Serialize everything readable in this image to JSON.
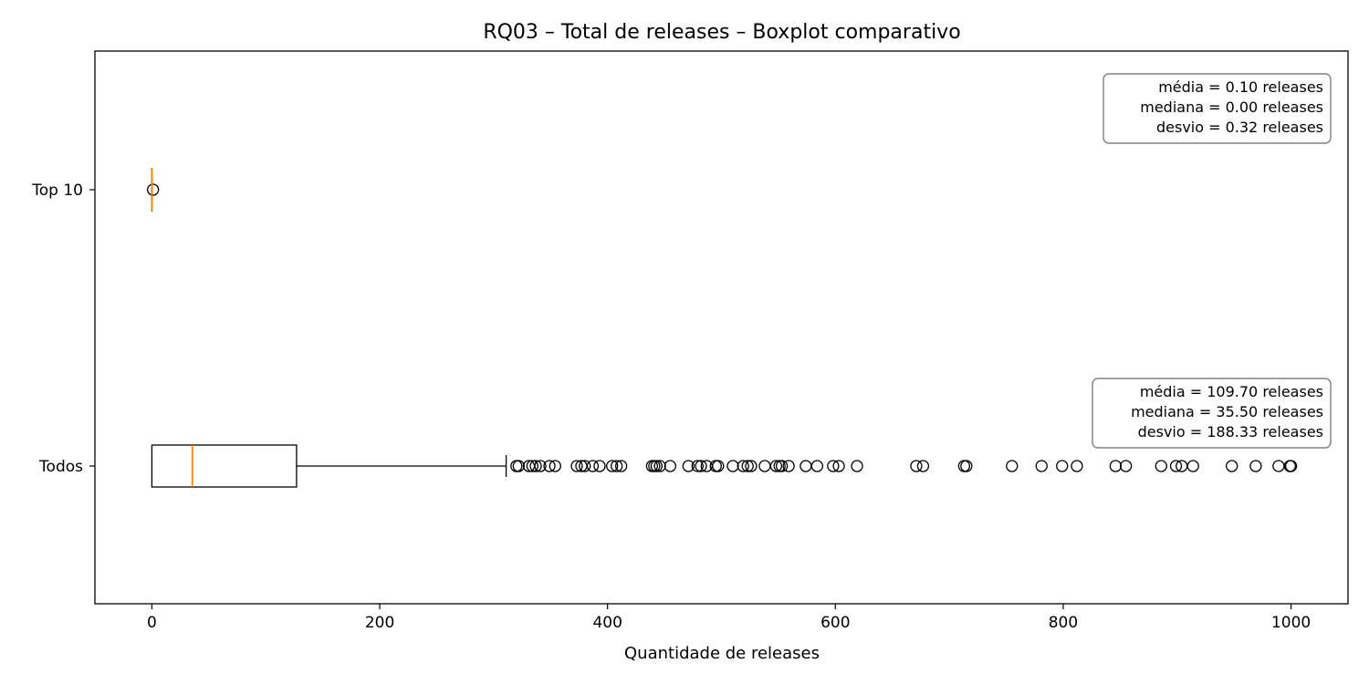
{
  "chart_data": {
    "type": "boxplot",
    "orientation": "horizontal",
    "title": "RQ03 – Total de releases – Boxplot comparativo",
    "xlabel": "Quantidade de releases",
    "ylabel": "",
    "xlim": [
      -50,
      1050
    ],
    "xticks": [
      0,
      200,
      400,
      600,
      800,
      1000
    ],
    "xtick_labels": [
      "0",
      "200",
      "400",
      "600",
      "800",
      "1000"
    ],
    "grid": false,
    "series": [
      {
        "name": "Todos",
        "q1": 0,
        "median": 35.5,
        "q3": 127,
        "whisker_low": 0,
        "whisker_high": 311,
        "outliers": [
          320,
          322,
          331,
          334,
          337,
          341,
          349,
          354,
          373,
          377,
          380,
          387,
          393,
          404,
          408,
          412,
          439,
          441,
          443,
          446,
          455,
          471,
          479,
          482,
          487,
          495,
          497,
          510,
          519,
          523,
          526,
          538,
          548,
          551,
          553,
          559,
          574,
          584,
          598,
          603,
          619,
          671,
          677,
          713,
          715,
          755,
          781,
          799,
          812,
          846,
          855,
          886,
          899,
          904,
          914,
          948,
          969,
          989,
          999,
          1000
        ],
        "stats_lines": [
          "média = 109.70 releases",
          "mediana = 35.50 releases",
          "desvio = 188.33 releases"
        ]
      },
      {
        "name": "Top 10",
        "q1": 0,
        "median": 0,
        "q3": 0,
        "whisker_low": 0,
        "whisker_high": 0,
        "outliers": [
          1
        ],
        "stats_lines": [
          "média = 0.10 releases",
          "mediana = 0.00 releases",
          "desvio = 0.32 releases"
        ]
      }
    ],
    "colors": {
      "box": "#000000",
      "median": "#ff7f0e",
      "stats_box_border": "#808080"
    }
  }
}
